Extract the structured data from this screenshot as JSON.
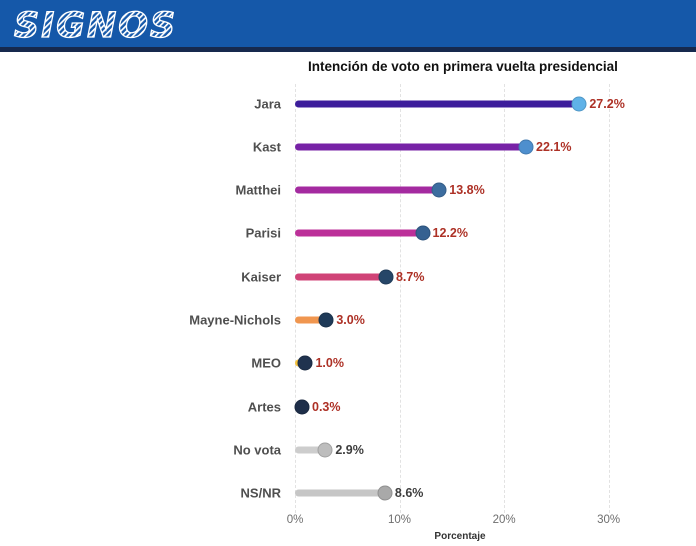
{
  "header": {
    "logo_text": "SIGNOS",
    "bg_color": "#1558a9",
    "underline_color": "#16294e"
  },
  "chart_data": {
    "type": "bar",
    "subtype": "horizontal-lollipop",
    "title": "Intención de voto en primera vuelta presidencial",
    "xlabel": "Porcentaje",
    "x_ticks": [
      "0%",
      "10%",
      "20%",
      "30%"
    ],
    "x_tick_values": [
      0,
      10,
      20,
      30
    ],
    "xlim": [
      0,
      33
    ],
    "grid": "dashed-vertical",
    "legend": "none",
    "categories": [
      "Jara",
      "Kast",
      "Matthei",
      "Parisi",
      "Kaiser",
      "Mayne-Nichols",
      "MEO",
      "Artes",
      "No vota",
      "NS/NR"
    ],
    "values": [
      27.2,
      22.1,
      13.8,
      12.2,
      8.7,
      3.0,
      1.0,
      0.3,
      2.9,
      8.6
    ],
    "value_labels": [
      "27.2%",
      "22.1%",
      "13.8%",
      "12.2%",
      "8.7%",
      "3.0%",
      "1.0%",
      "0.3%",
      "2.9%",
      "8.6%"
    ],
    "bar_colors": [
      "#3c1d9b",
      "#7722a6",
      "#a42ba0",
      "#bc3099",
      "#d04377",
      "#f0964f",
      "#f6c33d",
      "#1e2e49",
      "#cdcdcd",
      "#c6c6c6"
    ],
    "dot_colors": [
      "#5fb2e8",
      "#4e8fce",
      "#3c6d9f",
      "#356191",
      "#264668",
      "#1f3a58",
      "#20334f",
      "#1e2e49",
      "#bdbdbd",
      "#a9a9a9"
    ],
    "value_label_colors": [
      "#ad3126",
      "#ad3126",
      "#ad3126",
      "#ad3126",
      "#ad3126",
      "#ad3126",
      "#ad3126",
      "#ad3126",
      "#3d3d3d",
      "#3d3d3d"
    ],
    "category_label_color": "#4f4f4f",
    "title_color": "#111111",
    "tick_color": "#6e6e6e"
  }
}
